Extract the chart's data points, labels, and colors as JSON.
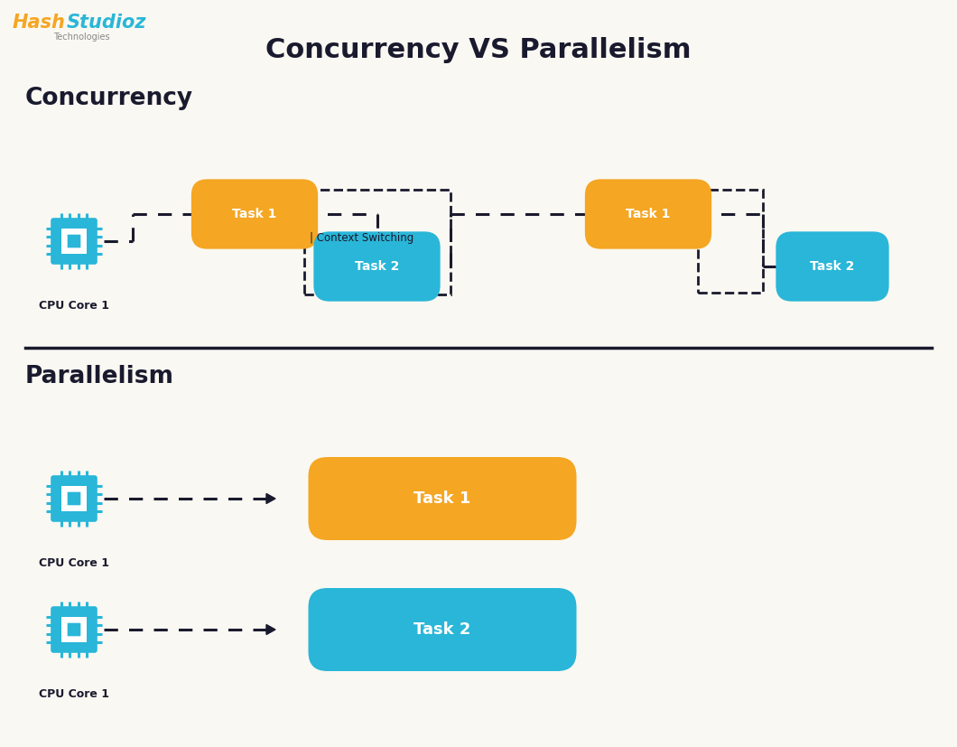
{
  "title": "Concurrency VS Parallelism",
  "bg_color": "#faf8f2",
  "title_color": "#1a1a2e",
  "section_concurrency": "Concurrency",
  "section_parallelism": "Parallelism",
  "orange_color": "#f5a623",
  "blue_color": "#29b6d8",
  "dark_color": "#1a1a2e",
  "white_color": "#ffffff",
  "cpu_color": "#29b6d8",
  "cpu_label": "CPU Core 1",
  "task1_label": "Task 1",
  "task2_label": "Task 2",
  "context_switch_label": "| Context Switching",
  "hash_orange": "#f5a623",
  "hash_blue": "#29b6d8",
  "tech_color": "#888888",
  "logo_hash": "Hash",
  "logo_studioz": "Studioz",
  "logo_tech": "Technologies"
}
